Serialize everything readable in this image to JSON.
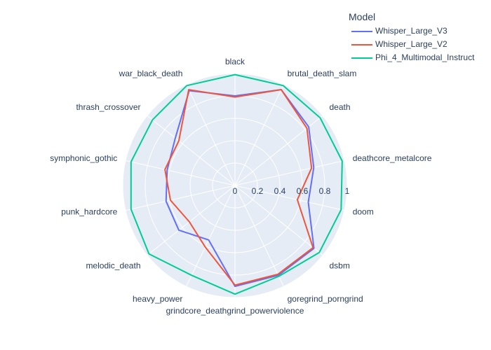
{
  "chart_data": {
    "type": "radar",
    "legend": {
      "title": "Model",
      "placement": "top-right"
    },
    "categories": [
      "black",
      "brutal_death_slam",
      "death",
      "deathcore_metalcore",
      "doom",
      "dsbm",
      "goregrind_porngrind",
      "grindcore_deathgrind_powerviolence",
      "heavy_power",
      "melodic_death",
      "punk_hardcore",
      "symphonic_gothic",
      "thrash_crossover",
      "war_black_death"
    ],
    "radial_axis": {
      "range": [
        0,
        1
      ],
      "tick_labels": [
        "0",
        "0.2",
        "0.4",
        "0.6",
        "0.8",
        "1"
      ],
      "tick_values": [
        0,
        0.2,
        0.4,
        0.6,
        0.8,
        1
      ]
    },
    "series": [
      {
        "name": "Whisper_Large_V3",
        "color": "#636efa",
        "values": [
          0.8,
          0.95,
          0.84,
          0.72,
          0.67,
          0.9,
          0.89,
          0.9,
          0.54,
          0.64,
          0.63,
          0.62,
          0.68,
          0.94
        ]
      },
      {
        "name": "Whisper_Large_V2",
        "color": "#ef553b",
        "values": [
          0.79,
          0.95,
          0.82,
          0.7,
          0.57,
          0.89,
          0.88,
          0.89,
          0.61,
          0.52,
          0.59,
          0.64,
          0.64,
          0.95
        ]
      },
      {
        "name": "Phi_4_Multimodal_Instruct",
        "color": "#00cc96",
        "values": [
          0.99,
          0.99,
          0.97,
          0.98,
          0.97,
          0.96,
          0.9,
          0.97,
          0.89,
          0.98,
          0.95,
          0.95,
          0.94,
          0.99
        ]
      }
    ]
  }
}
